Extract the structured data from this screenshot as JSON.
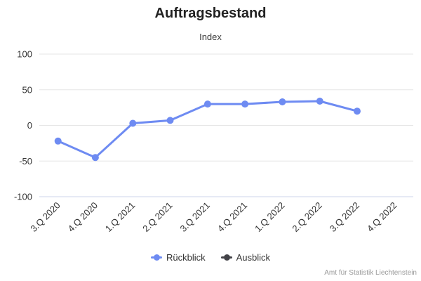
{
  "header": {
    "title": "Auftragsbestand",
    "subtitle": "Index"
  },
  "credits": "Amt für Statistik Liechtenstein",
  "colors": {
    "rueckblick": "#6e8bf2",
    "ausblick": "#434348",
    "gridline": "#e6e6e6",
    "axis_line": "#ccd6eb"
  },
  "legend": {
    "items": [
      {
        "id": "rueckblick",
        "label": "Rückblick",
        "color": "#6e8bf2"
      },
      {
        "id": "ausblick",
        "label": "Ausblick",
        "color": "#434348"
      }
    ]
  },
  "chart_data": {
    "type": "line",
    "title": "Auftragsbestand",
    "subtitle": "Index",
    "categories": [
      "3.Q 2020",
      "4.Q 2020",
      "1.Q 2021",
      "2.Q 2021",
      "3.Q 2021",
      "4.Q 2021",
      "1.Q 2022",
      "2.Q 2022",
      "3.Q 2022",
      "4.Q 2022"
    ],
    "series": [
      {
        "name": "Rückblick",
        "color": "#6e8bf2",
        "values": [
          -22,
          -45,
          3,
          7,
          30,
          30,
          33,
          34,
          20,
          null
        ]
      },
      {
        "name": "Ausblick",
        "color": "#434348",
        "values": [
          null,
          null,
          null,
          null,
          null,
          null,
          null,
          null,
          null,
          null
        ]
      }
    ],
    "ylim": [
      -100,
      100
    ],
    "yticks": [
      100,
      50,
      0,
      -50,
      -100
    ],
    "grid": true,
    "legend_position": "bottom",
    "xlabel": "",
    "ylabel": ""
  }
}
